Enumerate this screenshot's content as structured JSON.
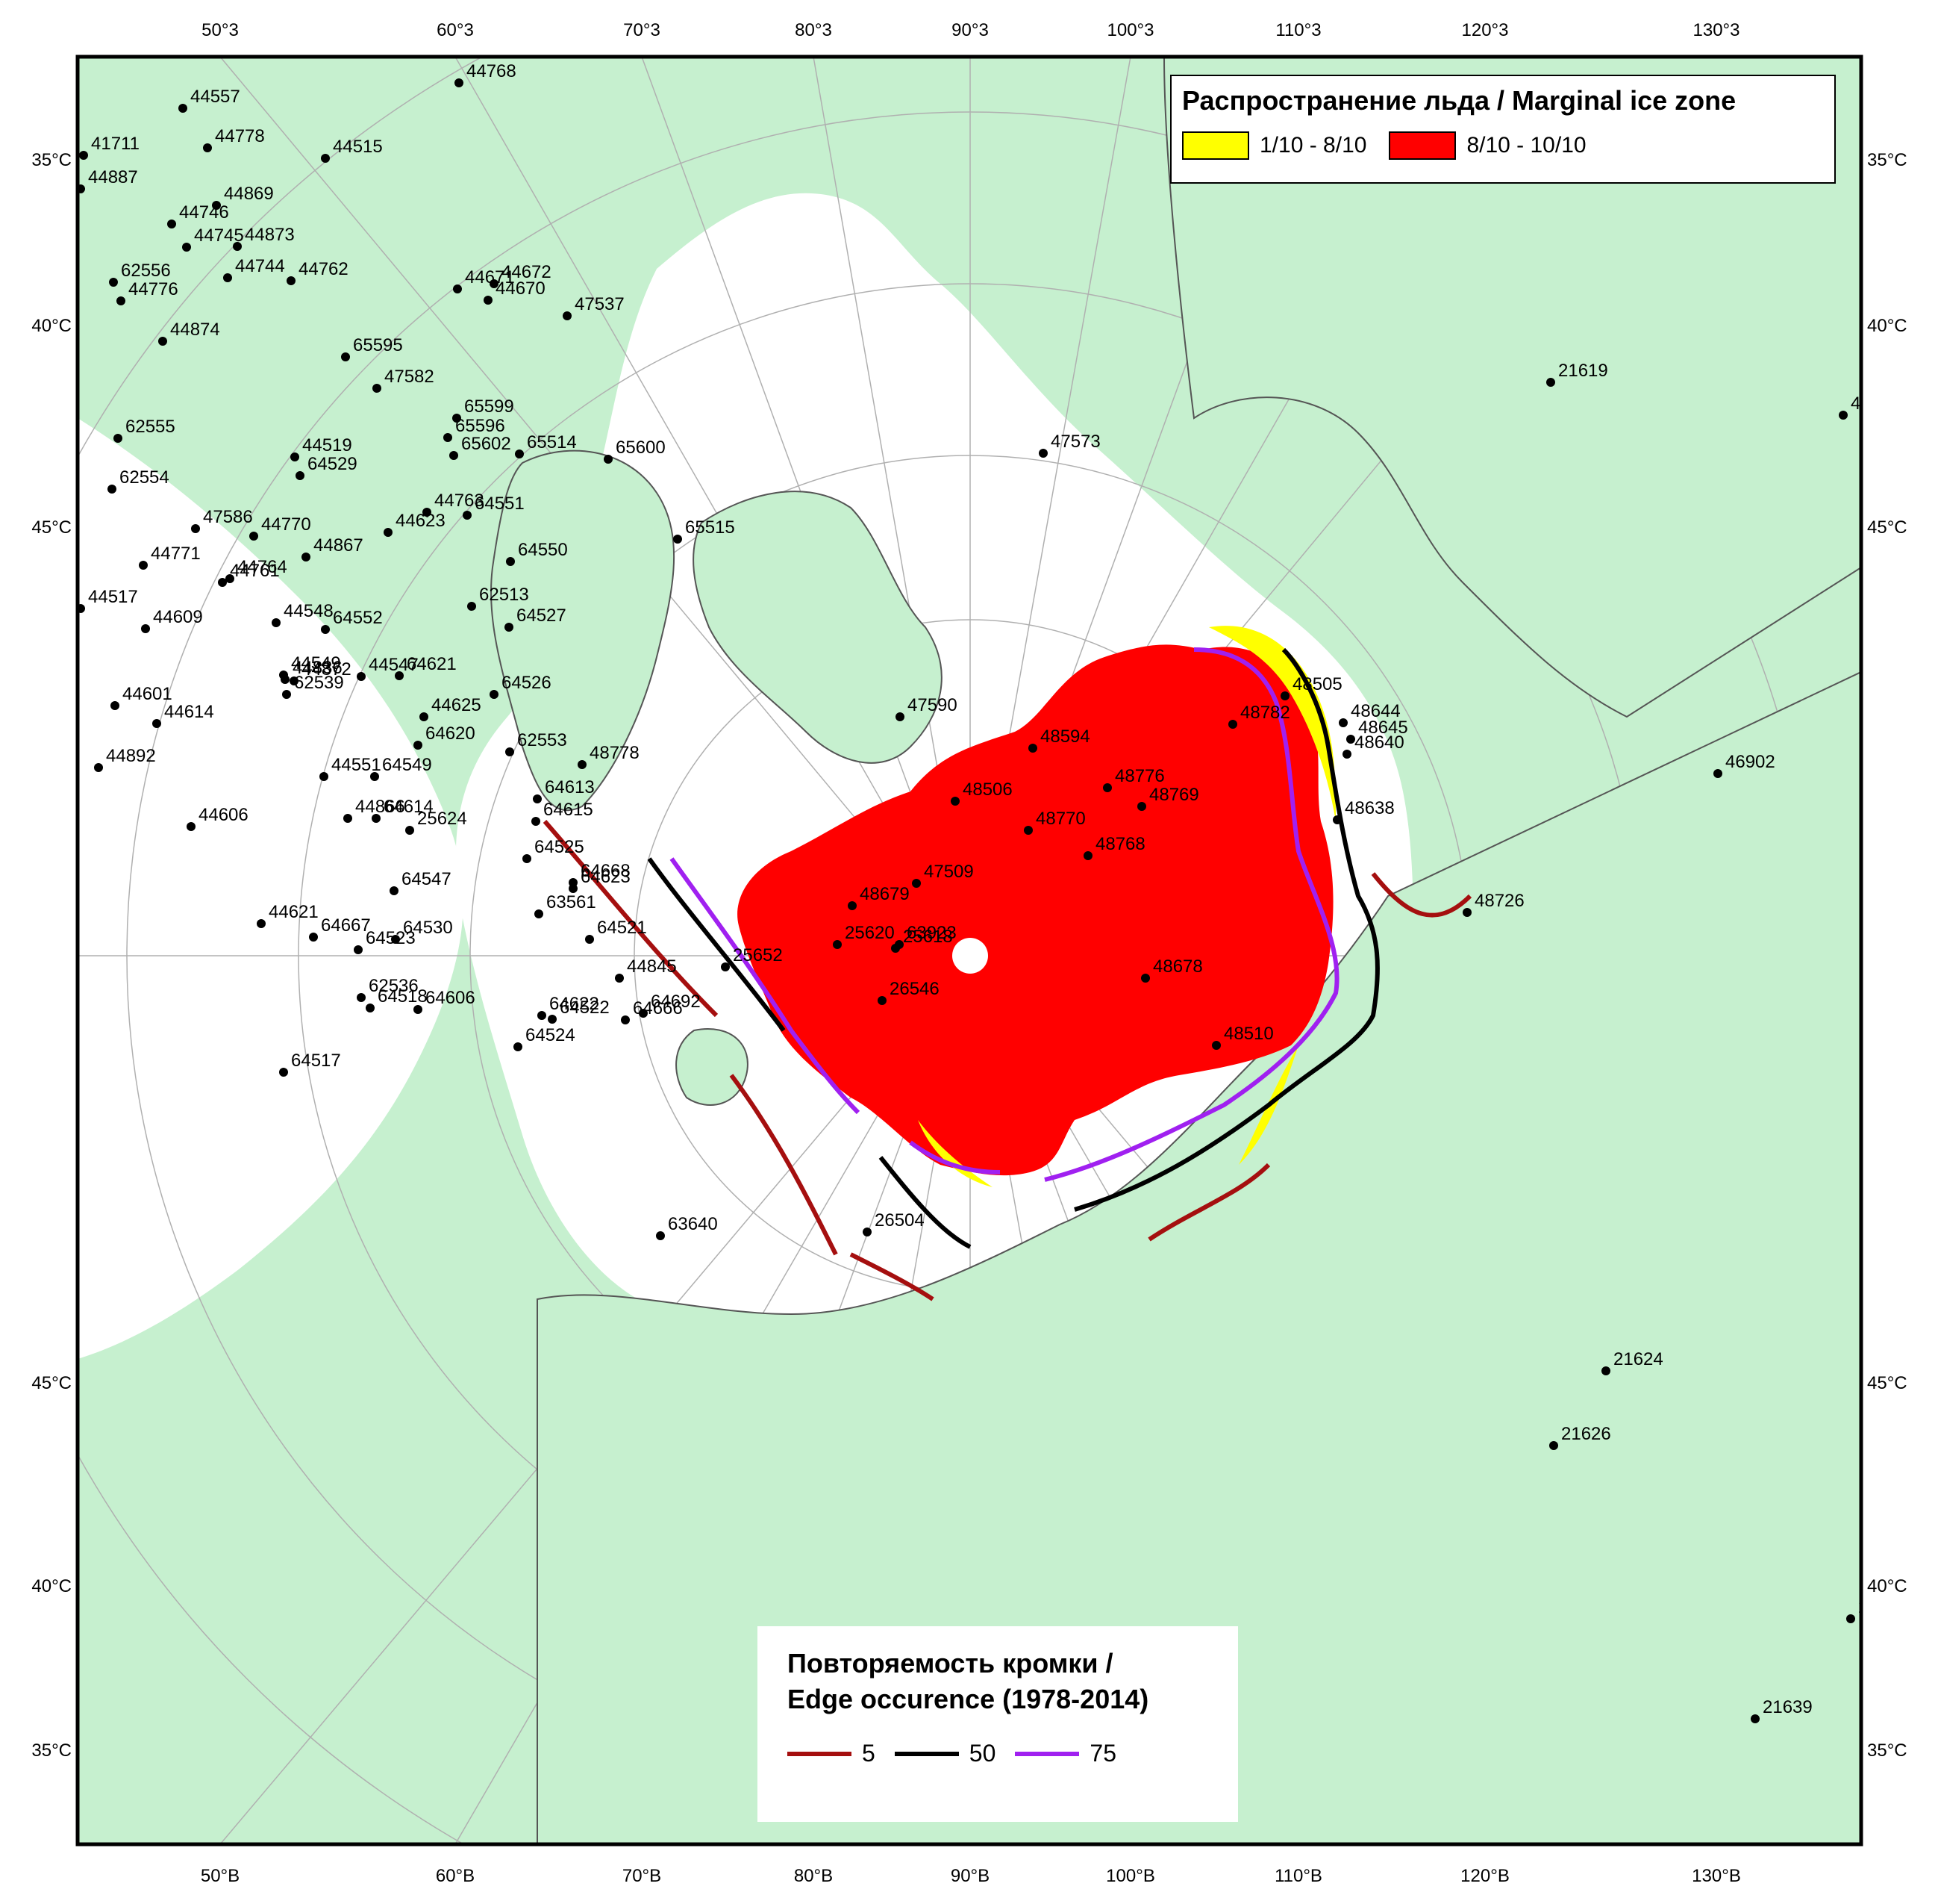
{
  "top_axis_labels": [
    "50°3",
    "60°3",
    "70°3",
    "80°3",
    "90°3",
    "100°3",
    "110°3",
    "120°3",
    "130°3"
  ],
  "bottom_axis_labels": [
    "50°B",
    "60°B",
    "70°B",
    "80°B",
    "90°B",
    "100°B",
    "110°B",
    "120°B",
    "130°B"
  ],
  "left_axis_labels": [
    "35°C",
    "40°C",
    "45°C",
    "45°C",
    "40°C",
    "35°C"
  ],
  "right_axis_labels": [
    "35°C",
    "40°C",
    "45°C",
    "45°C",
    "40°C",
    "35°C"
  ],
  "ice_legend": {
    "title": "Распространение льда / Marginal ice zone",
    "items": [
      {
        "label": "1/10 - 8/10",
        "color": "#ffff00"
      },
      {
        "label": "8/10 - 10/10",
        "color": "#ff0000"
      }
    ]
  },
  "edge_legend": {
    "title_line1": "Повторяемость кромки /",
    "title_line2": "Edge occurence (1978-2014)",
    "items": [
      {
        "label": "5",
        "color": "#a50f0f"
      },
      {
        "label": "50",
        "color": "#000000"
      },
      {
        "label": "75",
        "color": "#a020f0"
      }
    ]
  },
  "colors": {
    "ocean": "#c6f0cf",
    "land": "#c6f0cf",
    "open_water": "#ffffff",
    "ice_low": "#ffff00",
    "ice_high": "#ff0000",
    "graticule": "#b0b0b0",
    "coast": "#555555"
  },
  "stations": [
    {
      "id": "44774"
    },
    {
      "id": "44557"
    },
    {
      "id": "44778"
    },
    {
      "id": "41711"
    },
    {
      "id": "44887"
    },
    {
      "id": "44768"
    },
    {
      "id": "44515"
    },
    {
      "id": "44746"
    },
    {
      "id": "44869"
    },
    {
      "id": "44745"
    },
    {
      "id": "44873"
    },
    {
      "id": "44744"
    },
    {
      "id": "44762"
    },
    {
      "id": "44671"
    },
    {
      "id": "44672"
    },
    {
      "id": "44670"
    },
    {
      "id": "47537"
    },
    {
      "id": "62556"
    },
    {
      "id": "44776"
    },
    {
      "id": "44874"
    },
    {
      "id": "65595"
    },
    {
      "id": "47582"
    },
    {
      "id": "65599"
    },
    {
      "id": "65596"
    },
    {
      "id": "65602"
    },
    {
      "id": "65514"
    },
    {
      "id": "65600"
    },
    {
      "id": "62555"
    },
    {
      "id": "62554"
    },
    {
      "id": "44519"
    },
    {
      "id": "64529"
    },
    {
      "id": "44763"
    },
    {
      "id": "64551"
    },
    {
      "id": "44623"
    },
    {
      "id": "47586"
    },
    {
      "id": "44771"
    },
    {
      "id": "44770"
    },
    {
      "id": "44867"
    },
    {
      "id": "44764"
    },
    {
      "id": "44761"
    },
    {
      "id": "44517"
    },
    {
      "id": "64550"
    },
    {
      "id": "65515"
    },
    {
      "id": "62513"
    },
    {
      "id": "64527"
    },
    {
      "id": "44548"
    },
    {
      "id": "64552"
    },
    {
      "id": "44609"
    },
    {
      "id": "44549"
    },
    {
      "id": "44836"
    },
    {
      "id": "44872"
    },
    {
      "id": "64621"
    },
    {
      "id": "44601"
    },
    {
      "id": "62539"
    },
    {
      "id": "44547"
    },
    {
      "id": "44625"
    },
    {
      "id": "64526"
    },
    {
      "id": "44614"
    },
    {
      "id": "64620"
    },
    {
      "id": "62553"
    },
    {
      "id": "44892"
    },
    {
      "id": "44551"
    },
    {
      "id": "64549"
    },
    {
      "id": "48778"
    },
    {
      "id": "44606"
    },
    {
      "id": "44866"
    },
    {
      "id": "64614"
    },
    {
      "id": "64613"
    },
    {
      "id": "25624"
    },
    {
      "id": "64615"
    },
    {
      "id": "64525"
    },
    {
      "id": "64668"
    },
    {
      "id": "64547"
    },
    {
      "id": "64623"
    },
    {
      "id": "44621"
    },
    {
      "id": "63561"
    },
    {
      "id": "64667"
    },
    {
      "id": "64530"
    },
    {
      "id": "64521"
    },
    {
      "id": "64523"
    },
    {
      "id": "44845"
    },
    {
      "id": "62536"
    },
    {
      "id": "64518"
    },
    {
      "id": "64606"
    },
    {
      "id": "64692"
    },
    {
      "id": "64622"
    },
    {
      "id": "64666"
    },
    {
      "id": "64522"
    },
    {
      "id": "64517"
    },
    {
      "id": "64524"
    },
    {
      "id": "63640"
    },
    {
      "id": "26504"
    },
    {
      "id": "25652"
    },
    {
      "id": "26546"
    },
    {
      "id": "25620"
    },
    {
      "id": "63923"
    },
    {
      "id": "25618"
    },
    {
      "id": "48679"
    },
    {
      "id": "47509"
    },
    {
      "id": "47590"
    },
    {
      "id": "48506"
    },
    {
      "id": "48594"
    },
    {
      "id": "48770"
    },
    {
      "id": "48776"
    },
    {
      "id": "48769"
    },
    {
      "id": "48768"
    },
    {
      "id": "47573"
    },
    {
      "id": "48782"
    },
    {
      "id": "48505"
    },
    {
      "id": "48644"
    },
    {
      "id": "48645"
    },
    {
      "id": "48640"
    },
    {
      "id": "48638"
    },
    {
      "id": "48726"
    },
    {
      "id": "48678"
    },
    {
      "id": "48510"
    },
    {
      "id": "21619"
    },
    {
      "id": "46904"
    },
    {
      "id": "46902"
    },
    {
      "id": "21624"
    },
    {
      "id": "21626"
    },
    {
      "id": "21709"
    },
    {
      "id": "21639"
    }
  ]
}
